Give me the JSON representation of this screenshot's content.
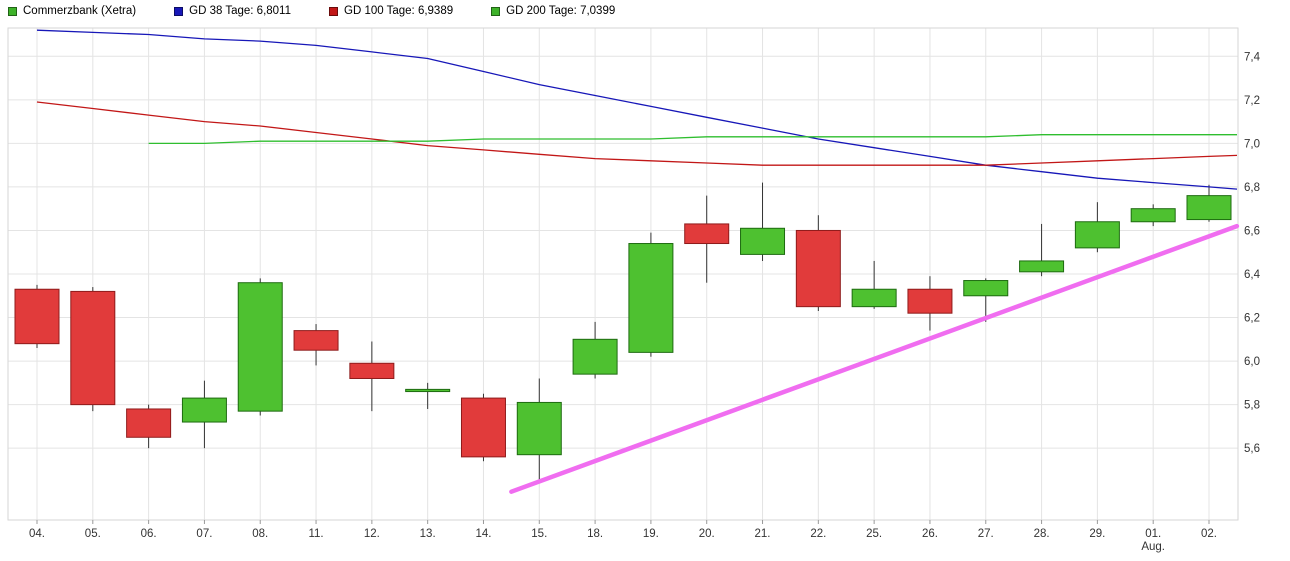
{
  "chart": {
    "title": "Commerzbank (Xetra)",
    "legend": [
      {
        "label": "Commerzbank (Xetra)",
        "color": "#3db229"
      },
      {
        "label": "GD 38 Tage: 6,8011",
        "color": "#1717b8"
      },
      {
        "label": "GD 100 Tage: 6,9389",
        "color": "#c21717"
      },
      {
        "label": "GD 200 Tage: 7,0399",
        "color": "#3db229"
      }
    ]
  },
  "chart_data": {
    "type": "candlestick",
    "title": "Commerzbank (Xetra) daily candles with moving averages",
    "categories": [
      "04.",
      "05.",
      "06.",
      "07.",
      "08.",
      "11.",
      "12.",
      "13.",
      "14.",
      "15.",
      "18.",
      "19.",
      "20.",
      "21.",
      "22.",
      "25.",
      "26.",
      "27.",
      "28.",
      "29.",
      "01.",
      "02."
    ],
    "x_axis_sub_label": {
      "under_category": "01.",
      "label": "Aug."
    },
    "y_tick_labels": [
      "7,4",
      "7,2",
      "7,0",
      "6,8",
      "6,6",
      "6,4",
      "6,2",
      "6,0",
      "5,8",
      "5,6"
    ],
    "ylim": [
      5.27,
      7.53
    ],
    "grid": true,
    "legend_position": "top-left",
    "candles": [
      {
        "open": 6.33,
        "high": 6.35,
        "low": 6.06,
        "close": 6.08
      },
      {
        "open": 6.32,
        "high": 6.34,
        "low": 5.77,
        "close": 5.8
      },
      {
        "open": 5.78,
        "high": 5.8,
        "low": 5.6,
        "close": 5.65
      },
      {
        "open": 5.72,
        "high": 5.91,
        "low": 5.6,
        "close": 5.83
      },
      {
        "open": 5.77,
        "high": 6.38,
        "low": 5.75,
        "close": 6.36
      },
      {
        "open": 6.14,
        "high": 6.17,
        "low": 5.98,
        "close": 6.05
      },
      {
        "open": 5.99,
        "high": 6.09,
        "low": 5.77,
        "close": 5.92
      },
      {
        "open": 5.86,
        "high": 5.9,
        "low": 5.78,
        "close": 5.87
      },
      {
        "open": 5.83,
        "high": 5.85,
        "low": 5.54,
        "close": 5.56
      },
      {
        "open": 5.57,
        "high": 5.92,
        "low": 5.44,
        "close": 5.81
      },
      {
        "open": 5.94,
        "high": 6.18,
        "low": 5.92,
        "close": 6.1
      },
      {
        "open": 6.04,
        "high": 6.59,
        "low": 6.02,
        "close": 6.54
      },
      {
        "open": 6.63,
        "high": 6.76,
        "low": 6.36,
        "close": 6.54
      },
      {
        "open": 6.49,
        "high": 6.82,
        "low": 6.46,
        "close": 6.61
      },
      {
        "open": 6.6,
        "high": 6.67,
        "low": 6.23,
        "close": 6.25
      },
      {
        "open": 6.25,
        "high": 6.46,
        "low": 6.24,
        "close": 6.33
      },
      {
        "open": 6.33,
        "high": 6.39,
        "low": 6.14,
        "close": 6.22
      },
      {
        "open": 6.3,
        "high": 6.38,
        "low": 6.18,
        "close": 6.37
      },
      {
        "open": 6.41,
        "high": 6.63,
        "low": 6.39,
        "close": 6.46
      },
      {
        "open": 6.52,
        "high": 6.73,
        "low": 6.5,
        "close": 6.64
      },
      {
        "open": 6.64,
        "high": 6.72,
        "low": 6.62,
        "close": 6.7
      },
      {
        "open": 6.65,
        "high": 6.81,
        "low": 6.64,
        "close": 6.76
      }
    ],
    "series": [
      {
        "name": "GD 38 Tage",
        "current": "6,8011",
        "color": "#1717b8",
        "values": [
          7.52,
          7.51,
          7.5,
          7.48,
          7.47,
          7.45,
          7.42,
          7.39,
          7.33,
          7.27,
          7.22,
          7.17,
          7.12,
          7.07,
          7.02,
          6.98,
          6.94,
          6.9,
          6.87,
          6.84,
          6.82,
          6.8
        ]
      },
      {
        "name": "GD 100 Tage",
        "current": "6,9389",
        "color": "#c21717",
        "values": [
          7.19,
          7.16,
          7.13,
          7.1,
          7.08,
          7.05,
          7.02,
          6.99,
          6.97,
          6.95,
          6.93,
          6.92,
          6.91,
          6.9,
          6.9,
          6.9,
          6.9,
          6.9,
          6.91,
          6.92,
          6.93,
          6.94
        ]
      },
      {
        "name": "GD 200 Tage",
        "current": "7,0399",
        "color": "#2fbe2f",
        "values": [
          null,
          null,
          7.0,
          7.0,
          7.01,
          7.01,
          7.01,
          7.01,
          7.02,
          7.02,
          7.02,
          7.02,
          7.03,
          7.03,
          7.03,
          7.03,
          7.03,
          7.03,
          7.04,
          7.04,
          7.04,
          7.04
        ]
      }
    ],
    "trendline": {
      "color": "#f06df0",
      "width": 4.5,
      "start": {
        "index": 8.5,
        "value": 5.4
      },
      "end": {
        "index": 21.5,
        "value": 6.62
      }
    },
    "colors": {
      "up_fill": "#4ec130",
      "up_border": "#1e6b10",
      "down_fill": "#e13b3b",
      "down_border": "#8f1b1b",
      "wick": "#333333",
      "grid": "#e4e4e4",
      "border": "#d6d6d6",
      "axis_text": "#333333"
    }
  }
}
